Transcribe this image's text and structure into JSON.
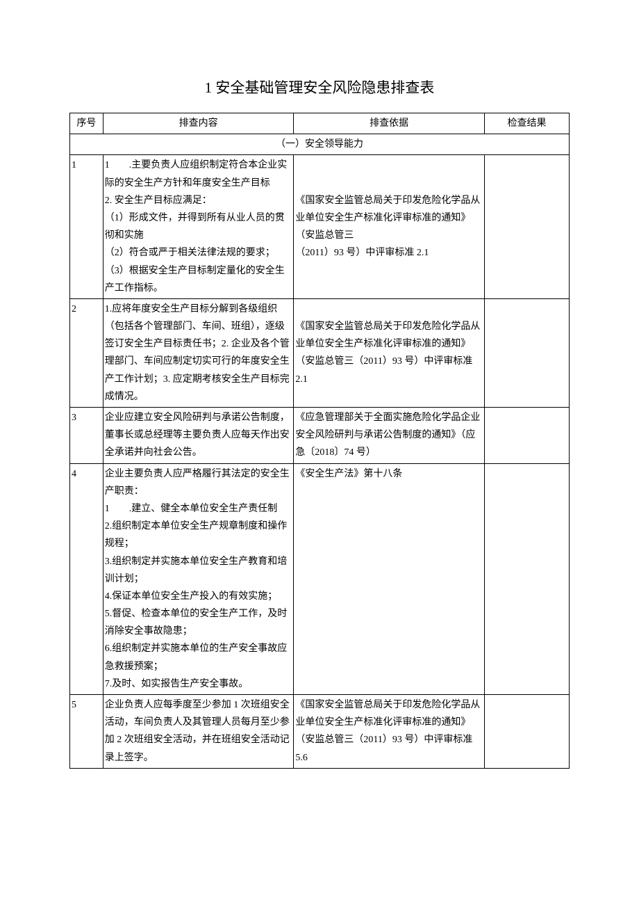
{
  "title": "1 安全基础管理安全风险隐患排查表",
  "headers": {
    "seq": "序号",
    "content": "排查内容",
    "basis": "排查依据",
    "result": "检查结果"
  },
  "section": "（一）安全领导能力",
  "rows": [
    {
      "seq": "1",
      "content": "1　　.主要负责人应组织制定符合本企业实际的安全生产方针和年度安全生产目标\n2. 安全生产目标应满足：\n（1）形成文件，并得到所有从业人员的贯彻和实施\n（2）符合或严于相关法律法规的要求；\n（3）根据安全生产目标制定量化的安全生产工作指标。",
      "basis": "《国家安全监管总局关于印发危险化学品从业单位安全生产标准化评审标准的通知》（安监总管三\n（2011）93 号）中评审标准 2.1"
    },
    {
      "seq": "2",
      "content": "1.应将年度安全生产目标分解到各级组织（包括各个管理部门、车间、班组），逐级签订安全生产目标责任书；2. 企业及各个管理部门、车间应制定切实可行的年度安全生产工作计划；3. 应定期考核安全生产目标完成情况。",
      "basis": "《国家安全监管总局关于印发危险化学品从业单位安全生产标准化评审标准的通知》（安监总管三（2011）93 号）中评审标准 2.1"
    },
    {
      "seq": "3",
      "content": "企业应建立安全风险研判与承诺公告制度，董事长或总经理等主要负责人应每天作出安全承诺并向社会公告。",
      "basis": "《应急管理部关于全面实施危险化学品企业安全风险研判与承诺公告制度的通知》（应急〔2018〕74 号）"
    },
    {
      "seq": "4",
      "content": "企业主要负责人应严格履行其法定的安全生产职责：\n1　　.建立、健全本单位安全生产责任制\n2.组织制定本单位安全生产规章制度和操作规程；\n3.组织制定并实施本单位安全生产教育和培训计划；\n4.保证本单位安全生产投入的有效实施；\n5.督促、检查本单位的安全生产工作，及时消除安全事故隐患；\n6.组织制定并实施本单位的生产安全事故应急救援预案；\n7.及时、如实报告生产安全事故。",
      "basis": "《安全生产法》第十八条"
    },
    {
      "seq": "5",
      "content": "企业负责人应每季度至少参加 1 次班组安全活动，车间负责人及其管理人员每月至少参加 2 次班组安全活动，并在班组安全活动记录上签字。",
      "basis": "《国家安全监管总局关于印发危险化学品从业单位安全生产标准化评审标准的通知》（安监总管三（2011）93 号）中评审标准 5.6"
    }
  ]
}
